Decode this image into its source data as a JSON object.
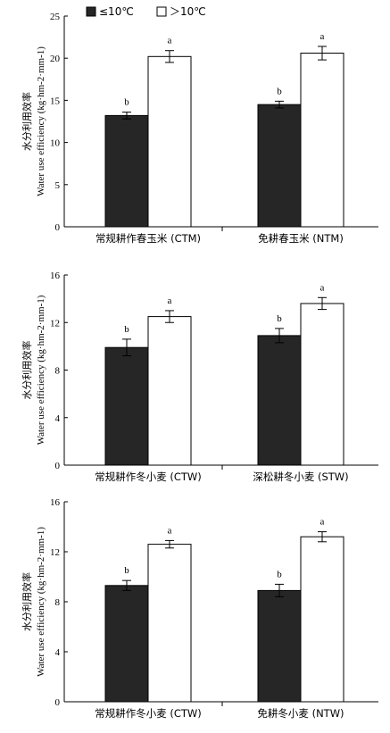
{
  "legend": [
    {
      "label": "≤10℃",
      "color": "#262626"
    },
    {
      "label": "＞10℃",
      "color": "#ffffff"
    }
  ],
  "chart_data": [
    {
      "type": "bar",
      "ylabel_cn": "水分利用效率",
      "ylabel_en": "Water use efficiency (kg·hm-2·mm-1)",
      "ylim": [
        0,
        25
      ],
      "yticks": [
        "0",
        "5",
        "10",
        "15",
        "20",
        "25"
      ],
      "categories": [
        "常规耕作春玉米 (CTM)",
        "免耕春玉米 (NTM)"
      ],
      "series": [
        {
          "name": "≤10℃",
          "values": [
            13.2,
            14.5
          ],
          "errors": [
            0.4,
            0.4
          ],
          "sig": [
            "b",
            "b"
          ]
        },
        {
          "name": "＞10℃",
          "values": [
            20.2,
            20.6
          ],
          "errors": [
            0.7,
            0.8
          ],
          "sig": [
            "a",
            "a"
          ]
        }
      ]
    },
    {
      "type": "bar",
      "ylabel_cn": "水分利用效率",
      "ylabel_en": "Water use efficiency (kg·hm-2·mm-1)",
      "ylim": [
        0,
        16
      ],
      "yticks": [
        "0",
        "4",
        "8",
        "12",
        "16"
      ],
      "categories": [
        "常规耕作冬小麦 (CTW)",
        "深松耕冬小麦 (STW)"
      ],
      "series": [
        {
          "name": "≤10℃",
          "values": [
            9.9,
            10.9
          ],
          "errors": [
            0.7,
            0.6
          ],
          "sig": [
            "b",
            "b"
          ]
        },
        {
          "name": "＞10℃",
          "values": [
            12.5,
            13.6
          ],
          "errors": [
            0.5,
            0.5
          ],
          "sig": [
            "a",
            "a"
          ]
        }
      ]
    },
    {
      "type": "bar",
      "ylabel_cn": "水分利用效率",
      "ylabel_en": "Water use efficiency (kg·hm-2·mm-1)",
      "ylim": [
        0,
        16
      ],
      "yticks": [
        "0",
        "4",
        "8",
        "12",
        "16"
      ],
      "categories": [
        "常规耕作冬小麦 (CTW)",
        "免耕冬小麦 (NTW)"
      ],
      "series": [
        {
          "name": "≤10℃",
          "values": [
            9.3,
            8.9
          ],
          "errors": [
            0.4,
            0.5
          ],
          "sig": [
            "b",
            "b"
          ]
        },
        {
          "name": "＞10℃",
          "values": [
            12.6,
            13.2
          ],
          "errors": [
            0.3,
            0.4
          ],
          "sig": [
            "a",
            "a"
          ]
        }
      ]
    }
  ]
}
